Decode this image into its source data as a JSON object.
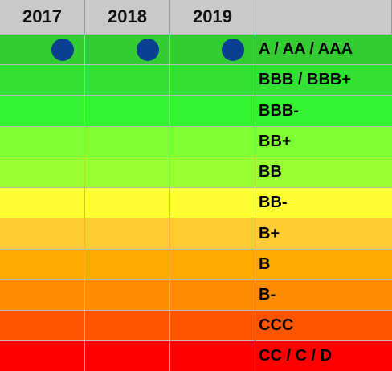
{
  "chart_data": {
    "type": "heatmap",
    "columns": [
      "2017",
      "2018",
      "2019"
    ],
    "ratings": [
      {
        "label": "A / AA / AAA",
        "color": "#33cc33",
        "marks": [
          true,
          true,
          true
        ]
      },
      {
        "label": "BBB / BBB+",
        "color": "#33e033",
        "marks": [
          false,
          false,
          false
        ]
      },
      {
        "label": "BBB-",
        "color": "#33f233",
        "marks": [
          false,
          false,
          false
        ]
      },
      {
        "label": "BB+",
        "color": "#7dff33",
        "marks": [
          false,
          false,
          false
        ]
      },
      {
        "label": "BB",
        "color": "#99ff33",
        "marks": [
          false,
          false,
          false
        ]
      },
      {
        "label": "BB-",
        "color": "#ffff33",
        "marks": [
          false,
          false,
          false
        ]
      },
      {
        "label": "B+",
        "color": "#ffcc33",
        "marks": [
          false,
          false,
          false
        ]
      },
      {
        "label": "B",
        "color": "#ffaa00",
        "marks": [
          false,
          false,
          false
        ]
      },
      {
        "label": "B-",
        "color": "#ff8c00",
        "marks": [
          false,
          false,
          false
        ]
      },
      {
        "label": "CCC",
        "color": "#ff5500",
        "marks": [
          false,
          false,
          false
        ]
      },
      {
        "label": "CC / C / D",
        "color": "#ff0000",
        "marks": [
          false,
          false,
          false
        ]
      }
    ],
    "marker_color": "#0b3f8f",
    "header_color": "#c9c9c9"
  }
}
